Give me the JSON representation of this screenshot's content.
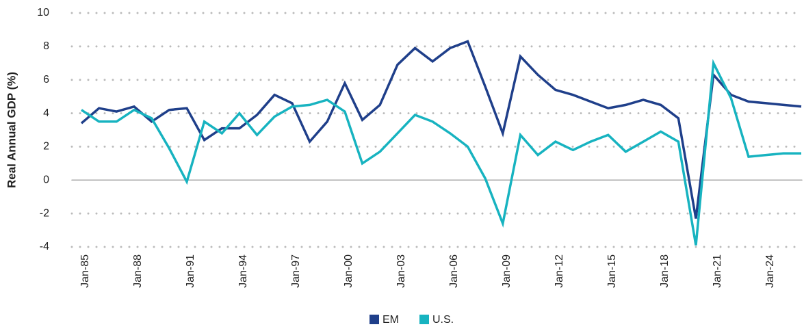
{
  "chart_data": {
    "type": "line",
    "y_label": "Real Annual GDP (%)",
    "categories": [
      "Jan-85",
      null,
      null,
      "Jan-88",
      null,
      null,
      "Jan-91",
      null,
      null,
      "Jan-94",
      null,
      null,
      "Jan-97",
      null,
      null,
      "Jan-00",
      null,
      null,
      "Jan-03",
      null,
      null,
      "Jan-06",
      null,
      null,
      "Jan-09",
      null,
      null,
      "Jan-12",
      null,
      null,
      "Jan-15",
      null,
      null,
      "Jan-18",
      null,
      null,
      "Jan-21",
      null,
      null,
      "Jan-24",
      null,
      null
    ],
    "series": [
      {
        "name": "EM",
        "color": "#1f3f8a",
        "values": [
          3.4,
          4.3,
          4.1,
          4.4,
          3.5,
          4.2,
          4.3,
          2.4,
          3.1,
          3.1,
          3.9,
          5.1,
          4.6,
          2.3,
          3.5,
          5.8,
          3.6,
          4.5,
          6.9,
          7.9,
          7.1,
          7.9,
          8.3,
          5.6,
          2.8,
          7.4,
          6.3,
          5.4,
          5.1,
          4.7,
          4.3,
          4.5,
          4.8,
          4.5,
          3.7,
          -2.3,
          6.3,
          5.1,
          4.7,
          4.6,
          4.5,
          4.4
        ]
      },
      {
        "name": "U.S.",
        "color": "#17b3c0",
        "values": [
          4.2,
          3.5,
          3.5,
          4.2,
          3.7,
          1.9,
          -0.1,
          3.5,
          2.8,
          4.0,
          2.7,
          3.8,
          4.4,
          4.5,
          4.8,
          4.1,
          1.0,
          1.7,
          2.8,
          3.9,
          3.5,
          2.8,
          2.0,
          0.1,
          -2.6,
          2.7,
          1.5,
          2.3,
          1.8,
          2.3,
          2.7,
          1.7,
          2.3,
          2.9,
          2.3,
          -3.9,
          7.0,
          4.9,
          1.4,
          1.5,
          1.6,
          1.6
        ]
      }
    ],
    "ylim": [
      -4,
      10
    ],
    "yticks": [
      -4,
      -2,
      0,
      2,
      4,
      6,
      8,
      10
    ],
    "grid": true,
    "legend": "bottom"
  }
}
